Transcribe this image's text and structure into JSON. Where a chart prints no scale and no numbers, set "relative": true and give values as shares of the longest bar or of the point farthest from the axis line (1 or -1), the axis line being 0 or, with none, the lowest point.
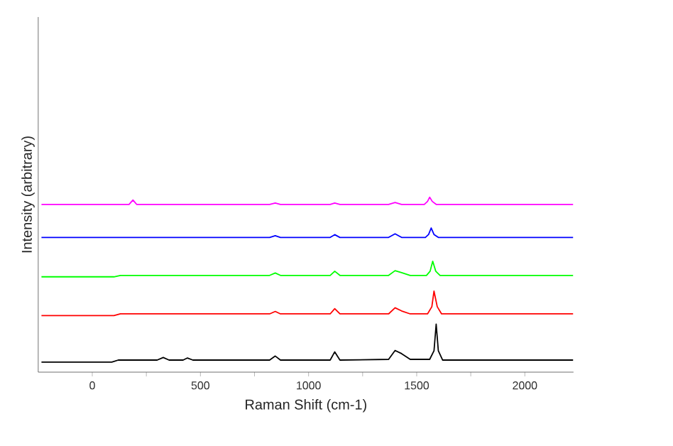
{
  "chart_data": {
    "type": "line",
    "relative": true,
    "xlabel": "Raman Shift (cm-1)",
    "ylabel": "Intensity (arbitrary)",
    "xlim": [
      -250,
      2225
    ],
    "xticks": [
      0,
      {
        "value": 250,
        "label": null
      },
      500,
      {
        "value": 750,
        "label": null
      },
      1000,
      {
        "value": 1250,
        "label": null
      },
      1500,
      {
        "value": 1750,
        "label": null
      },
      2000
    ],
    "series": [
      {
        "color": "#000000",
        "x": [
          -235,
          90,
          120,
          300,
          328,
          355,
          420,
          440,
          465,
          820,
          846,
          870,
          1100,
          1121,
          1145,
          1370,
          1400,
          1430,
          1470,
          1560,
          1580,
          1590,
          1600,
          1620,
          2223
        ],
        "values": [
          0.057,
          0.057,
          0.069,
          0.069,
          0.084,
          0.069,
          0.069,
          0.081,
          0.069,
          0.069,
          0.092,
          0.069,
          0.069,
          0.116,
          0.069,
          0.073,
          0.124,
          0.106,
          0.073,
          0.073,
          0.122,
          0.274,
          0.122,
          0.069,
          0.069
        ]
      },
      {
        "color": "#ff0000",
        "x": [
          -235,
          100,
          130,
          820,
          846,
          870,
          1100,
          1121,
          1145,
          1370,
          1400,
          1430,
          1470,
          1550,
          1570,
          1580,
          1595,
          1615,
          2223
        ],
        "values": [
          0.323,
          0.323,
          0.333,
          0.333,
          0.347,
          0.333,
          0.333,
          0.363,
          0.333,
          0.333,
          0.368,
          0.35,
          0.333,
          0.333,
          0.374,
          0.463,
          0.374,
          0.333,
          0.333
        ]
      },
      {
        "color": "#00ff00",
        "x": [
          -235,
          100,
          130,
          820,
          846,
          870,
          1100,
          1121,
          1145,
          1370,
          1400,
          1430,
          1470,
          1545,
          1562,
          1574,
          1588,
          1608,
          2223
        ],
        "values": [
          0.545,
          0.545,
          0.553,
          0.553,
          0.567,
          0.553,
          0.553,
          0.577,
          0.553,
          0.553,
          0.58,
          0.569,
          0.553,
          0.553,
          0.577,
          0.634,
          0.577,
          0.553,
          0.553
        ]
      },
      {
        "color": "#0000ff",
        "x": [
          -235,
          100,
          130,
          820,
          846,
          870,
          1100,
          1121,
          1145,
          1370,
          1400,
          1430,
          1470,
          1540,
          1555,
          1567,
          1580,
          1600,
          2223
        ],
        "values": [
          0.77,
          0.77,
          0.77,
          0.77,
          0.78,
          0.77,
          0.77,
          0.786,
          0.77,
          0.77,
          0.791,
          0.77,
          0.77,
          0.77,
          0.787,
          0.824,
          0.787,
          0.77,
          0.77
        ]
      },
      {
        "color": "#ff00ff",
        "x": [
          -235,
          170,
          188,
          205,
          820,
          846,
          870,
          1100,
          1121,
          1145,
          1370,
          1400,
          1430,
          1535,
          1550,
          1560,
          1572,
          1590,
          2223
        ],
        "values": [
          0.959,
          0.959,
          0.984,
          0.959,
          0.959,
          0.967,
          0.959,
          0.959,
          0.967,
          0.959,
          0.959,
          0.97,
          0.959,
          0.959,
          0.976,
          1,
          0.976,
          0.959,
          0.959
        ]
      }
    ]
  }
}
